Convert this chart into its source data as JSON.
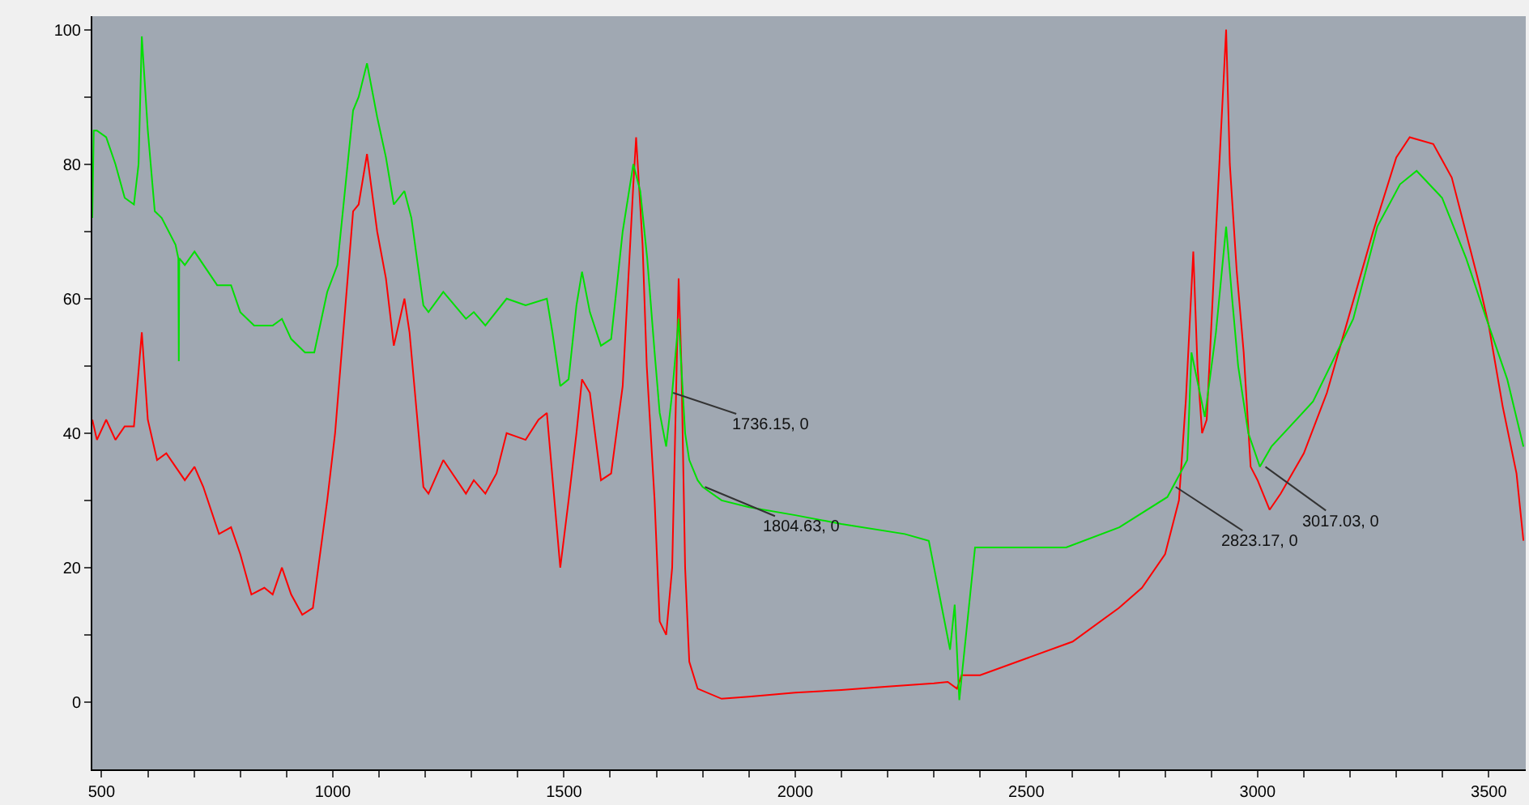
{
  "chart_data": {
    "type": "line",
    "x": [
      480,
      490,
      510,
      530,
      550,
      570,
      587,
      600,
      620,
      640,
      660,
      680,
      701,
      720,
      754,
      780,
      800,
      824,
      852,
      870,
      890,
      910,
      934,
      957,
      988,
      1005,
      1044,
      1056,
      1074,
      1096,
      1115,
      1132,
      1155,
      1166,
      1196,
      1207,
      1239,
      1288,
      1305,
      1330,
      1354,
      1376,
      1417,
      1445,
      1463,
      1492,
      1510,
      1527,
      1539,
      1556,
      1580,
      1602,
      1627,
      1650,
      1656,
      1670,
      1679,
      1696,
      1707,
      1721,
      1734,
      1748,
      1754,
      1762,
      1771,
      1789,
      1841,
      1900,
      2000,
      2100,
      2200,
      2300,
      2330,
      2350,
      2360,
      2400,
      2500,
      2600,
      2700,
      2750,
      2800,
      2830,
      2845,
      2861,
      2870,
      2880,
      2890,
      2910,
      2932,
      2940,
      2955,
      2970,
      2985,
      3000,
      3026,
      3050,
      3100,
      3150,
      3200,
      3250,
      3300,
      3329,
      3380,
      3420,
      3450,
      3480,
      3500,
      3530,
      3560,
      3575
    ],
    "series": [
      {
        "color": "#ff0000",
        "values": [
          42,
          39,
          42,
          39,
          41,
          41,
          55,
          42,
          36,
          37,
          35,
          33,
          35,
          32,
          25,
          26,
          22,
          16,
          17,
          16,
          20,
          16,
          13,
          14,
          30,
          40,
          73,
          74,
          81.5,
          70,
          63,
          53,
          60,
          55,
          32,
          31,
          36,
          31,
          33,
          31,
          34,
          40,
          39,
          42,
          43,
          20,
          30,
          40,
          48,
          46,
          33,
          34,
          47,
          77,
          84,
          68,
          50,
          30,
          12,
          10,
          20,
          63,
          50,
          20,
          6,
          2,
          0.5,
          0.8,
          1.4,
          1.8,
          2.3,
          2.8,
          3,
          2,
          4,
          4,
          6.5,
          9,
          14,
          17,
          22,
          30,
          45,
          67,
          50,
          40,
          42,
          70,
          100,
          80,
          64,
          52,
          35,
          33,
          28.6,
          31,
          37,
          46,
          58,
          70,
          81,
          84,
          83,
          78,
          70,
          62,
          56,
          44,
          34,
          24
        ]
      },
      {
        "color": "#00e000",
        "x": [
          480,
          483,
          490,
          510,
          530,
          550,
          570,
          580,
          587,
          600,
          615,
          630,
          660,
          666,
          667,
          668,
          680,
          701,
          750,
          780,
          800,
          830,
          870,
          890,
          910,
          940,
          960,
          988,
          1010,
          1044,
          1056,
          1074,
          1096,
          1115,
          1132,
          1155,
          1170,
          1196,
          1207,
          1239,
          1288,
          1305,
          1330,
          1376,
          1417,
          1463,
          1475,
          1492,
          1510,
          1527,
          1539,
          1556,
          1580,
          1602,
          1627,
          1650,
          1665,
          1680,
          1696,
          1707,
          1721,
          1734,
          1748,
          1762,
          1771,
          1789,
          1800,
          1841,
          1900,
          2000,
          2100,
          2237,
          2289,
          2335,
          2345,
          2355,
          2389,
          2500,
          2586,
          2701,
          2805,
          2848,
          2857,
          2886,
          2910,
          2932,
          2945,
          2958,
          2980,
          3005,
          3030,
          3120,
          3207,
          3259,
          3308,
          3344,
          3399,
          3451,
          3495,
          3540,
          3575
        ],
        "values": [
          72,
          85,
          85,
          84,
          80,
          75,
          74,
          80,
          99,
          85,
          73,
          72,
          68,
          66,
          50.7,
          66,
          65,
          67,
          62,
          62,
          58,
          56,
          56,
          57,
          54,
          52,
          52,
          61,
          65,
          88,
          90,
          95,
          87,
          81,
          74,
          76,
          72,
          59,
          58,
          61,
          57,
          58,
          56,
          60,
          59,
          60,
          55,
          47,
          48,
          59,
          64,
          58,
          53,
          54,
          70,
          80,
          76,
          66,
          52,
          43,
          38,
          46,
          57,
          40,
          36,
          33,
          32,
          30,
          29,
          27.8,
          26.5,
          25,
          24,
          7.8,
          14.5,
          0.3,
          23,
          23,
          23,
          26,
          30.5,
          36,
          52,
          42.4,
          55,
          70.7,
          60,
          50,
          40,
          35,
          38,
          44.7,
          57,
          70.7,
          77,
          79,
          75,
          66,
          57,
          48,
          38
        ]
      }
    ],
    "xlim": [
      480,
      3580
    ],
    "ylim": [
      -10,
      102
    ],
    "xticks": [
      500,
      {
        "value": 600,
        "label": null
      },
      {
        "value": 700,
        "label": null
      },
      {
        "value": 800,
        "label": null
      },
      {
        "value": 900,
        "label": null
      },
      1000,
      {
        "value": 1100,
        "label": null
      },
      {
        "value": 1200,
        "label": null
      },
      {
        "value": 1300,
        "label": null
      },
      {
        "value": 1400,
        "label": null
      },
      1500,
      {
        "value": 1600,
        "label": null
      },
      {
        "value": 1700,
        "label": null
      },
      {
        "value": 1800,
        "label": null
      },
      {
        "value": 1900,
        "label": null
      },
      2000,
      {
        "value": 2100,
        "label": null
      },
      {
        "value": 2200,
        "label": null
      },
      {
        "value": 2300,
        "label": null
      },
      {
        "value": 2400,
        "label": null
      },
      2500,
      {
        "value": 2600,
        "label": null
      },
      {
        "value": 2700,
        "label": null
      },
      {
        "value": 2800,
        "label": null
      },
      {
        "value": 2900,
        "label": null
      },
      3000,
      {
        "value": 3100,
        "label": null
      },
      {
        "value": 3200,
        "label": null
      },
      {
        "value": 3300,
        "label": null
      },
      {
        "value": 3400,
        "label": null
      },
      3500
    ],
    "yticks": [
      0,
      {
        "value": 10,
        "label": null
      },
      20,
      {
        "value": 30,
        "label": null
      },
      40,
      {
        "value": 50,
        "label": null
      },
      60,
      {
        "value": 70,
        "label": null
      },
      80,
      {
        "value": 90,
        "label": null
      },
      100
    ],
    "annotations": [
      {
        "text": "1736.15, 0",
        "x": 1736,
        "y": 46
      },
      {
        "text": "1804.63, 0",
        "x": 1805,
        "y": 32
      },
      {
        "text": "2823.17, 0",
        "x": 2823,
        "y": 32
      },
      {
        "text": "3017.03, 0",
        "x": 3017,
        "y": 35
      }
    ],
    "grid": false,
    "legend": false,
    "marker": "none",
    "line_style": "solid"
  }
}
